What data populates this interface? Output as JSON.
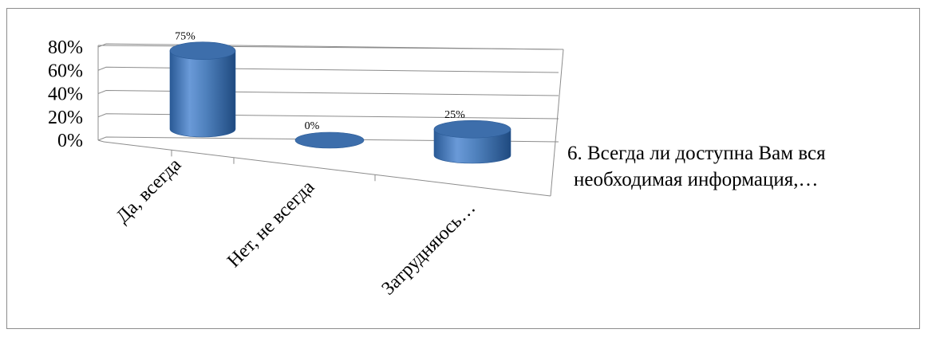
{
  "chart_data": {
    "type": "bar",
    "style": "3d-cylinder",
    "categories": [
      "Да, всегда",
      "Нет, не всегда",
      "Затрудняюсь…"
    ],
    "series": [
      {
        "name": "6. Всегда ли доступна Вам вся необходимая информация,…",
        "values": [
          75,
          0,
          25
        ],
        "data_labels": [
          "75%",
          "0%",
          "25%"
        ],
        "color": "#4f81bd"
      }
    ],
    "y_ticks": [
      "0%",
      "20%",
      "40%",
      "60%",
      "80%"
    ],
    "ylim": [
      0,
      80
    ],
    "grid": true,
    "legend_position": "right"
  },
  "legend": {
    "line1": "6. Всегда ли доступна Вам вся",
    "line2": "необходимая информация,…"
  }
}
